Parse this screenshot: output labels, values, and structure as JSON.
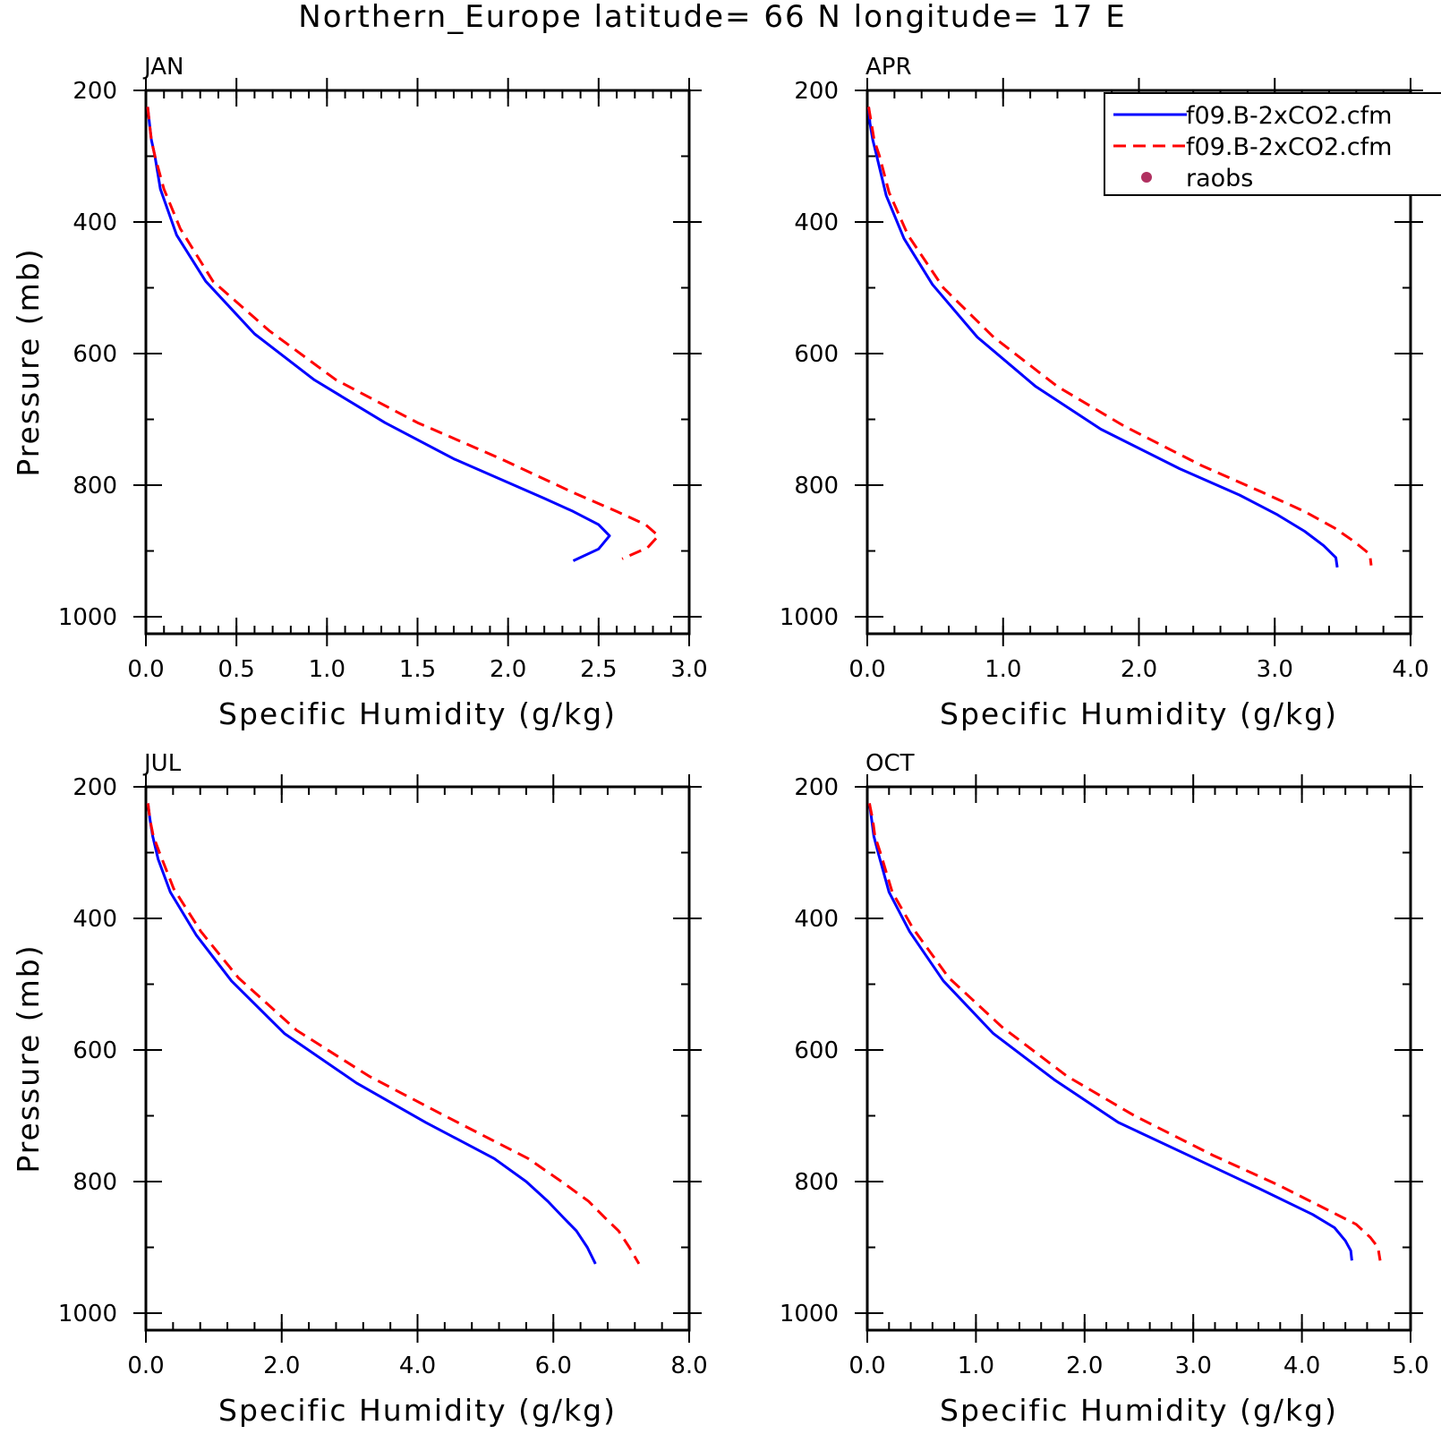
{
  "title": "Northern_Europe  latitude= 66 N longitude= 17 E",
  "legend": {
    "items": [
      {
        "label": "f09.B-2xCO2.cfm",
        "style": "solid",
        "color": "#0000ff"
      },
      {
        "label": "f09.B-2xCO2.cfm",
        "style": "dashed",
        "color": "#ff0000"
      },
      {
        "label": "raobs",
        "style": "dot",
        "color": "#b03060"
      }
    ],
    "placement": "top-right of APR panel"
  },
  "chart_data": [
    {
      "type": "line",
      "title": "JAN",
      "xlabel": "Specific Humidity (g/kg)",
      "ylabel": "Pressure (mb)",
      "xlim": [
        0,
        3.0
      ],
      "ylim": [
        200,
        1000
      ],
      "y_inverted": true,
      "xticks": [
        "0.0",
        "0.5",
        "1.0",
        "1.5",
        "2.0",
        "2.5",
        "3.0"
      ],
      "xtick_values": [
        0,
        0.5,
        1.0,
        1.5,
        2.0,
        2.5,
        3.0
      ],
      "x_minor_step": 0.1,
      "yticks": [
        "200",
        "400",
        "600",
        "800",
        "1000"
      ],
      "ytick_values": [
        200,
        400,
        600,
        800,
        1000
      ],
      "y_minor_step": 100,
      "grid": false,
      "series": [
        {
          "style": "solid",
          "color": "#0000ff",
          "points": [
            [
              0.01,
              225
            ],
            [
              0.02,
              250
            ],
            [
              0.03,
              275
            ],
            [
              0.05,
              300
            ],
            [
              0.08,
              350
            ],
            [
              0.17,
              420
            ],
            [
              0.33,
              490
            ],
            [
              0.6,
              570
            ],
            [
              0.93,
              640
            ],
            [
              1.32,
              705
            ],
            [
              1.7,
              760
            ],
            [
              2.2,
              820
            ],
            [
              2.36,
              840
            ],
            [
              2.5,
              860
            ],
            [
              2.56,
              877
            ],
            [
              2.5,
              897
            ],
            [
              2.36,
              915
            ]
          ]
        },
        {
          "style": "dashed",
          "color": "#ff0000",
          "points": [
            [
              0.01,
              225
            ],
            [
              0.02,
              250
            ],
            [
              0.03,
              275
            ],
            [
              0.05,
              300
            ],
            [
              0.1,
              350
            ],
            [
              0.19,
              410
            ],
            [
              0.37,
              490
            ],
            [
              0.68,
              565
            ],
            [
              1.05,
              640
            ],
            [
              1.5,
              705
            ],
            [
              1.96,
              760
            ],
            [
              2.35,
              810
            ],
            [
              2.6,
              840
            ],
            [
              2.76,
              860
            ],
            [
              2.83,
              877
            ],
            [
              2.77,
              895
            ],
            [
              2.63,
              912
            ]
          ]
        }
      ]
    },
    {
      "type": "line",
      "title": "APR",
      "xlabel": "Specific Humidity (g/kg)",
      "ylabel": "",
      "xlim": [
        0,
        4.0
      ],
      "ylim": [
        200,
        1000
      ],
      "y_inverted": true,
      "xticks": [
        "0.0",
        "1.0",
        "2.0",
        "3.0",
        "4.0"
      ],
      "xtick_values": [
        0,
        1.0,
        2.0,
        3.0,
        4.0
      ],
      "x_minor_step": 0.2,
      "yticks": [
        "200",
        "400",
        "600",
        "800",
        "1000"
      ],
      "ytick_values": [
        200,
        400,
        600,
        800,
        1000
      ],
      "y_minor_step": 100,
      "grid": false,
      "series": [
        {
          "style": "solid",
          "color": "#0000ff",
          "points": [
            [
              0.01,
              225
            ],
            [
              0.02,
              250
            ],
            [
              0.04,
              275
            ],
            [
              0.07,
              300
            ],
            [
              0.14,
              360
            ],
            [
              0.27,
              425
            ],
            [
              0.48,
              495
            ],
            [
              0.81,
              575
            ],
            [
              1.24,
              650
            ],
            [
              1.72,
              715
            ],
            [
              2.3,
              775
            ],
            [
              2.74,
              815
            ],
            [
              3.02,
              845
            ],
            [
              3.22,
              870
            ],
            [
              3.36,
              892
            ],
            [
              3.45,
              910
            ],
            [
              3.46,
              925
            ]
          ]
        },
        {
          "style": "dashed",
          "color": "#ff0000",
          "points": [
            [
              0.01,
              225
            ],
            [
              0.03,
              250
            ],
            [
              0.05,
              275
            ],
            [
              0.09,
              300
            ],
            [
              0.16,
              355
            ],
            [
              0.3,
              420
            ],
            [
              0.56,
              500
            ],
            [
              0.93,
              575
            ],
            [
              1.4,
              650
            ],
            [
              1.89,
              710
            ],
            [
              2.46,
              770
            ],
            [
              2.9,
              810
            ],
            [
              3.22,
              840
            ],
            [
              3.44,
              865
            ],
            [
              3.58,
              885
            ],
            [
              3.7,
              905
            ],
            [
              3.71,
              922
            ]
          ]
        }
      ]
    },
    {
      "type": "line",
      "title": "JUL",
      "xlabel": "Specific Humidity (g/kg)",
      "ylabel": "Pressure (mb)",
      "xlim": [
        0,
        8.0
      ],
      "ylim": [
        200,
        1000
      ],
      "y_inverted": true,
      "xticks": [
        "0.0",
        "2.0",
        "4.0",
        "6.0",
        "8.0"
      ],
      "xtick_values": [
        0,
        2.0,
        4.0,
        6.0,
        8.0
      ],
      "x_minor_step": 0.4,
      "yticks": [
        "200",
        "400",
        "600",
        "800",
        "1000"
      ],
      "ytick_values": [
        200,
        400,
        600,
        800,
        1000
      ],
      "y_minor_step": 100,
      "grid": false,
      "series": [
        {
          "style": "solid",
          "color": "#0000ff",
          "points": [
            [
              0.03,
              225
            ],
            [
              0.06,
              250
            ],
            [
              0.1,
              275
            ],
            [
              0.18,
              310
            ],
            [
              0.36,
              360
            ],
            [
              0.74,
              425
            ],
            [
              1.26,
              495
            ],
            [
              2.04,
              575
            ],
            [
              3.1,
              650
            ],
            [
              4.12,
              710
            ],
            [
              5.13,
              765
            ],
            [
              5.6,
              800
            ],
            [
              5.92,
              830
            ],
            [
              6.15,
              855
            ],
            [
              6.34,
              875
            ],
            [
              6.5,
              900
            ],
            [
              6.62,
              925
            ]
          ]
        },
        {
          "style": "dashed",
          "color": "#ff0000",
          "points": [
            [
              0.03,
              225
            ],
            [
              0.06,
              250
            ],
            [
              0.11,
              275
            ],
            [
              0.2,
              300
            ],
            [
              0.41,
              355
            ],
            [
              0.81,
              420
            ],
            [
              1.36,
              490
            ],
            [
              2.22,
              570
            ],
            [
              3.29,
              640
            ],
            [
              4.4,
              700
            ],
            [
              5.63,
              765
            ],
            [
              6.12,
              800
            ],
            [
              6.52,
              830
            ],
            [
              6.76,
              855
            ],
            [
              6.96,
              875
            ],
            [
              7.12,
              900
            ],
            [
              7.26,
              925
            ]
          ]
        }
      ]
    },
    {
      "type": "line",
      "title": "OCT",
      "xlabel": "Specific Humidity (g/kg)",
      "ylabel": "",
      "xlim": [
        0,
        5.0
      ],
      "ylim": [
        200,
        1000
      ],
      "y_inverted": true,
      "xticks": [
        "0.0",
        "1.0",
        "2.0",
        "3.0",
        "4.0",
        "5.0"
      ],
      "xtick_values": [
        0,
        1.0,
        2.0,
        3.0,
        4.0,
        5.0
      ],
      "x_minor_step": 0.2,
      "yticks": [
        "200",
        "400",
        "600",
        "800",
        "1000"
      ],
      "ytick_values": [
        200,
        400,
        600,
        800,
        1000
      ],
      "y_minor_step": 100,
      "grid": false,
      "series": [
        {
          "style": "solid",
          "color": "#0000ff",
          "points": [
            [
              0.02,
              225
            ],
            [
              0.04,
              250
            ],
            [
              0.06,
              275
            ],
            [
              0.1,
              300
            ],
            [
              0.2,
              360
            ],
            [
              0.39,
              420
            ],
            [
              0.7,
              495
            ],
            [
              1.16,
              575
            ],
            [
              1.72,
              645
            ],
            [
              2.31,
              710
            ],
            [
              3.02,
              765
            ],
            [
              3.6,
              810
            ],
            [
              4.1,
              850
            ],
            [
              4.3,
              870
            ],
            [
              4.4,
              890
            ],
            [
              4.45,
              905
            ],
            [
              4.46,
              920
            ]
          ]
        },
        {
          "style": "dashed",
          "color": "#ff0000",
          "points": [
            [
              0.02,
              225
            ],
            [
              0.05,
              250
            ],
            [
              0.07,
              275
            ],
            [
              0.12,
              300
            ],
            [
              0.23,
              360
            ],
            [
              0.42,
              415
            ],
            [
              0.75,
              490
            ],
            [
              1.24,
              565
            ],
            [
              1.84,
              640
            ],
            [
              2.46,
              700
            ],
            [
              3.18,
              760
            ],
            [
              3.78,
              805
            ],
            [
              4.26,
              845
            ],
            [
              4.5,
              865
            ],
            [
              4.63,
              885
            ],
            [
              4.7,
              900
            ],
            [
              4.72,
              920
            ]
          ]
        }
      ]
    }
  ]
}
